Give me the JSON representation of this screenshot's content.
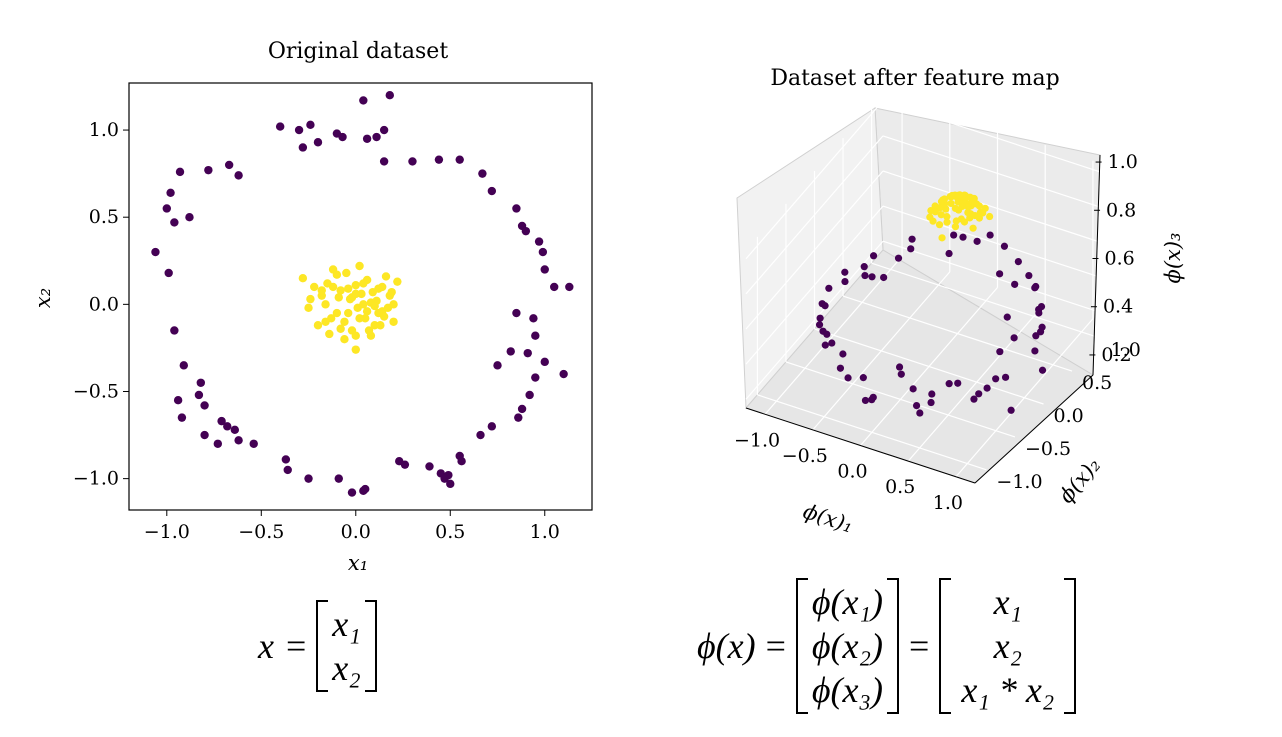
{
  "chart_data": [
    {
      "type": "scatter",
      "title": "Original dataset",
      "xlabel": "x₁",
      "ylabel": "x₂",
      "xlim": [
        -1.2,
        1.25
      ],
      "ylim": [
        -1.18,
        1.27
      ],
      "xticks": [
        "−1.0",
        "−0.5",
        "0.0",
        "0.5",
        "1.0"
      ],
      "yticks": [
        "1.0",
        "0.5",
        "0.0",
        "−0.5",
        "−1.0"
      ],
      "grid": false,
      "series": [
        {
          "color": "#440154",
          "x": [
            0.18,
            0.04,
            -0.4,
            -0.2,
            -0.07,
            -0.28,
            0.15,
            0.3,
            0.44,
            0.55,
            0.67,
            0.72,
            0.85,
            0.88,
            0.9,
            0.97,
            0.99,
            1.0,
            1.05,
            1.13,
            0.85,
            0.94,
            -0.67,
            -0.62,
            -0.78,
            -0.93,
            -0.98,
            -1.0,
            -0.88,
            -0.96,
            -1.06,
            -0.99,
            -0.96,
            -0.91,
            -0.82,
            -0.83,
            -0.8,
            -0.71,
            -0.64,
            -0.62,
            -0.54,
            -0.37,
            -0.36,
            -0.25,
            -0.09,
            -0.02,
            0.04,
            0.05,
            0.23,
            0.26,
            0.39,
            0.45,
            0.49,
            0.55,
            0.56,
            0.66,
            0.72,
            0.86,
            0.88,
            0.92,
            0.95,
            1.0,
            1.1,
            0.91,
            -0.68,
            -0.8,
            -0.92,
            -0.94,
            0.11,
            0.15,
            -0.24,
            -0.3,
            -0.1,
            0.06,
            0.47,
            0.5,
            0.95,
            0.82,
            0.75,
            -0.73
          ],
          "y": [
            1.2,
            1.17,
            1.02,
            0.93,
            0.96,
            0.9,
            0.82,
            0.82,
            0.83,
            0.83,
            0.75,
            0.65,
            0.55,
            0.45,
            0.42,
            0.36,
            0.3,
            0.2,
            0.1,
            0.1,
            -0.05,
            -0.08,
            0.8,
            0.74,
            0.77,
            0.76,
            0.64,
            0.55,
            0.5,
            0.47,
            0.3,
            0.18,
            -0.15,
            -0.35,
            -0.45,
            -0.52,
            -0.58,
            -0.67,
            -0.72,
            -0.78,
            -0.8,
            -0.89,
            -0.95,
            -1.0,
            -1.0,
            -1.08,
            -1.07,
            -1.06,
            -0.9,
            -0.92,
            -0.93,
            -0.97,
            -0.98,
            -0.87,
            -0.9,
            -0.75,
            -0.7,
            -0.65,
            -0.6,
            -0.52,
            -0.42,
            -0.33,
            -0.4,
            -0.28,
            -0.7,
            -0.75,
            -0.65,
            -0.55,
            0.96,
            1.0,
            1.03,
            1.0,
            0.98,
            0.95,
            -1.0,
            -1.03,
            -0.18,
            -0.27,
            -0.35,
            -0.8
          ]
        },
        {
          "color": "#fde725",
          "x": [
            -0.28,
            -0.22,
            -0.18,
            -0.15,
            -0.12,
            -0.1,
            -0.08,
            -0.06,
            -0.05,
            -0.03,
            -0.02,
            0.0,
            0.01,
            0.02,
            0.03,
            0.05,
            0.06,
            0.08,
            0.1,
            0.12,
            0.14,
            0.16,
            0.18,
            0.2,
            0.22,
            -0.25,
            -0.2,
            -0.16,
            -0.13,
            -0.09,
            -0.04,
            0.0,
            0.04,
            0.07,
            0.11,
            0.15,
            0.19,
            -0.12,
            -0.06,
            0.02,
            0.09,
            0.13,
            0.17,
            -0.18,
            -0.02,
            0.06,
            -0.08,
            0.0,
            0.1,
            -0.24,
            -0.14,
            0.04,
            0.14,
            -0.1,
            0.08,
            0.2,
            -0.04,
            0.12,
            -0.16,
            0.0
          ],
          "y": [
            0.15,
            0.1,
            0.05,
            0.12,
            0.2,
            -0.05,
            0.08,
            -0.1,
            0.18,
            0.03,
            -0.15,
            0.11,
            -0.02,
            0.22,
            0.06,
            -0.08,
            0.14,
            0.01,
            -0.12,
            0.09,
            -0.04,
            0.16,
            0.05,
            -0.1,
            0.13,
            -0.02,
            -0.12,
            0.0,
            -0.08,
            0.04,
            -0.05,
            -0.18,
            0.0,
            -0.15,
            0.02,
            -0.07,
            0.07,
            0.1,
            -0.2,
            -0.08,
            0.07,
            -0.12,
            -0.02,
            0.08,
            0.04,
            -0.04,
            -0.14,
            0.06,
            -0.01,
            0.03,
            -0.17,
            0.12,
            0.1,
            0.17,
            -0.18,
            0.0,
            0.09,
            -0.05,
            -0.1,
            -0.26
          ]
        }
      ]
    },
    {
      "type": "scatter",
      "title": "Dataset after feature map",
      "xlabel": "ϕ(x)₁",
      "ylabel": "ϕ(x)₂",
      "zlabel": "ϕ(x)₃",
      "xticks": [
        "−1.0",
        "−0.5",
        "0.0",
        "0.5",
        "1.0"
      ],
      "yticks": [
        "−1.0",
        "−0.5",
        "0.0",
        "0.5",
        "1.0"
      ],
      "zticks": [
        "0.2",
        "0.4",
        "0.6",
        "0.8",
        "1.0"
      ],
      "grid": true,
      "series": [
        {
          "color": "#440154",
          "x": [
            0.18,
            0.04,
            -0.4,
            -0.2,
            -0.07,
            -0.28,
            0.15,
            0.3,
            0.44,
            0.55,
            0.67,
            0.72,
            0.85,
            0.88,
            0.9,
            0.97,
            0.99,
            1.0,
            1.05,
            1.13,
            0.85,
            0.94,
            -0.67,
            -0.62,
            -0.78,
            -0.93,
            -0.98,
            -1.0,
            -0.88,
            -0.96,
            -1.06,
            -0.99,
            -0.96,
            -0.91,
            -0.82,
            -0.83,
            -0.8,
            -0.71,
            -0.64,
            -0.62,
            -0.54,
            -0.37,
            -0.36,
            -0.25,
            -0.09,
            -0.02,
            0.04,
            0.05,
            0.23,
            0.26,
            0.39,
            0.45,
            0.49,
            0.55,
            0.56,
            0.66,
            0.72,
            0.86,
            0.88,
            0.92,
            0.95,
            1.0,
            1.1,
            0.91
          ],
          "y": [
            1.2,
            1.17,
            1.02,
            0.93,
            0.96,
            0.9,
            0.82,
            0.82,
            0.83,
            0.83,
            0.75,
            0.65,
            0.55,
            0.45,
            0.42,
            0.36,
            0.3,
            0.2,
            0.1,
            0.1,
            -0.05,
            -0.08,
            0.8,
            0.74,
            0.77,
            0.76,
            0.64,
            0.55,
            0.5,
            0.47,
            0.3,
            0.18,
            -0.15,
            -0.35,
            -0.45,
            -0.52,
            -0.58,
            -0.67,
            -0.72,
            -0.78,
            -0.8,
            -0.89,
            -0.95,
            -1.0,
            -1.0,
            -1.08,
            -1.07,
            -1.06,
            -0.9,
            -0.92,
            -0.93,
            -0.97,
            -0.98,
            -0.87,
            -0.9,
            -0.75,
            -0.7,
            -0.65,
            -0.6,
            -0.52,
            -0.42,
            -0.33,
            -0.4,
            -0.28
          ],
          "z_note_range": [
            0.2,
            0.7
          ]
        },
        {
          "color": "#fde725",
          "z_range": [
            0.8,
            1.0
          ]
        }
      ]
    }
  ],
  "equations": {
    "left": {
      "lhs": "x",
      "equals": "=",
      "cells": [
        "x₁",
        "x₂"
      ]
    },
    "right": {
      "lhs": "ϕ(x)",
      "equals_1": "=",
      "cells_1": [
        "ϕ(x₁)",
        "ϕ(x₂)",
        "ϕ(x₃)"
      ],
      "equals_2": "=",
      "cells_2": [
        "x₁",
        "x₂",
        "x₁ * x₂"
      ]
    }
  }
}
